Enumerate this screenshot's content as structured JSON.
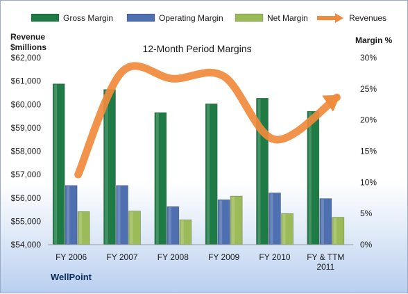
{
  "chart_data": {
    "type": "bar",
    "title": "12-Month Period Margins",
    "categories": [
      "FY 2006",
      "FY 2007",
      "FY 2008",
      "FY 2009",
      "FY 2010",
      "FY & TTM|2011"
    ],
    "series": [
      {
        "name": "Gross Margin",
        "axis": "right",
        "values": [
          25.8,
          24.9,
          21.2,
          22.6,
          23.5,
          21.4
        ],
        "color": "#1e7b45"
      },
      {
        "name": "Operating Margin",
        "axis": "right",
        "values": [
          9.5,
          9.5,
          6.1,
          7.2,
          8.3,
          7.4
        ],
        "color": "#4e6fb0"
      },
      {
        "name": "Net Margin",
        "axis": "right",
        "values": [
          5.3,
          5.4,
          4.0,
          7.8,
          5.0,
          4.4
        ],
        "color": "#9bbb59"
      },
      {
        "name": "Revenues",
        "type": "line",
        "axis": "left",
        "values": [
          57000,
          61400,
          61100,
          61200,
          58500,
          60300
        ],
        "color": "#f08a3c"
      }
    ],
    "left_axis": {
      "label_line1": "Revenue",
      "label_line2": "$millions",
      "min": 54000,
      "max": 62000,
      "step": 1000
    },
    "right_axis": {
      "label": "Margin %",
      "min": 0,
      "max": 30,
      "step": 5
    },
    "legend_position": "top",
    "grid": false
  },
  "footer": {
    "brand": "WellPoint"
  }
}
